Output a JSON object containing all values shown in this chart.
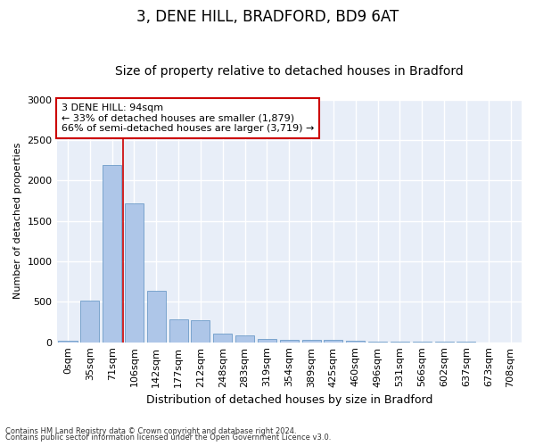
{
  "title1": "3, DENE HILL, BRADFORD, BD9 6AT",
  "title2": "Size of property relative to detached houses in Bradford",
  "xlabel": "Distribution of detached houses by size in Bradford",
  "ylabel": "Number of detached properties",
  "categories": [
    "0sqm",
    "35sqm",
    "71sqm",
    "106sqm",
    "142sqm",
    "177sqm",
    "212sqm",
    "248sqm",
    "283sqm",
    "319sqm",
    "354sqm",
    "389sqm",
    "425sqm",
    "460sqm",
    "496sqm",
    "531sqm",
    "566sqm",
    "602sqm",
    "637sqm",
    "673sqm",
    "708sqm"
  ],
  "values": [
    20,
    520,
    2190,
    1720,
    635,
    280,
    275,
    110,
    80,
    45,
    35,
    35,
    25,
    15,
    10,
    5,
    5,
    3,
    2,
    1,
    1
  ],
  "bar_color": "#aec6e8",
  "bar_edge_color": "#5a8fc0",
  "annotation_text_line1": "3 DENE HILL: 94sqm",
  "annotation_text_line2": "← 33% of detached houses are smaller (1,879)",
  "annotation_text_line3": "66% of semi-detached houses are larger (3,719) →",
  "annotation_box_color": "#ffffff",
  "annotation_box_edge": "#cc0000",
  "red_line_color": "#cc0000",
  "footer1": "Contains HM Land Registry data © Crown copyright and database right 2024.",
  "footer2": "Contains public sector information licensed under the Open Government Licence v3.0.",
  "ylim": [
    0,
    3000
  ],
  "yticks": [
    0,
    500,
    1000,
    1500,
    2000,
    2500,
    3000
  ],
  "background_color": "#e8eef8",
  "fig_background": "#ffffff",
  "grid_color": "#ffffff",
  "title1_fontsize": 12,
  "title2_fontsize": 10,
  "xlabel_fontsize": 9,
  "ylabel_fontsize": 8,
  "tick_fontsize": 8,
  "footer_fontsize": 6,
  "annotation_fontsize": 8
}
